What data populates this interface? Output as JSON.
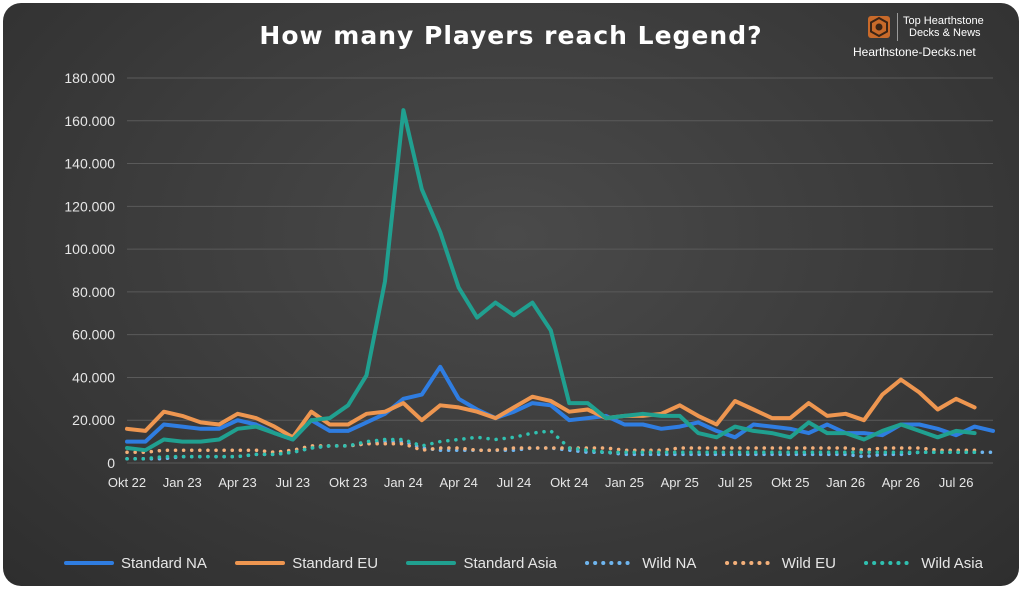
{
  "brand": {
    "line1": "Top Hearthstone",
    "line2": "Decks & News",
    "url": "Hearthstone-Decks.net"
  },
  "chart_data": {
    "type": "line",
    "title": "How many Players reach Legend?",
    "xlabel": "",
    "ylabel": "",
    "ylim": [
      0,
      180000
    ],
    "y_ticks": [
      "0",
      "20.000",
      "40.000",
      "60.000",
      "80.000",
      "100.000",
      "120.000",
      "140.000",
      "160.000",
      "180.000"
    ],
    "y_tick_values": [
      0,
      20000,
      40000,
      60000,
      80000,
      100000,
      120000,
      140000,
      160000,
      180000
    ],
    "x_tick_labels": [
      {
        "index": 0,
        "label": "Okt 22"
      },
      {
        "index": 3,
        "label": "Jan 23"
      },
      {
        "index": 6,
        "label": "Apr 23"
      },
      {
        "index": 9,
        "label": "Jul 23"
      },
      {
        "index": 12,
        "label": "Okt 23"
      },
      {
        "index": 15,
        "label": "Jan 24"
      },
      {
        "index": 18,
        "label": "Apr 24"
      },
      {
        "index": 21,
        "label": "Jul 24"
      },
      {
        "index": 24,
        "label": "Okt 24"
      },
      {
        "index": 27,
        "label": "Jan 25"
      },
      {
        "index": 30,
        "label": "Apr 25"
      },
      {
        "index": 33,
        "label": "Jul 25"
      },
      {
        "index": 36,
        "label": "Okt 25"
      },
      {
        "index": 39,
        "label": "Jan 26"
      },
      {
        "index": 42,
        "label": "Apr 26"
      },
      {
        "index": 45,
        "label": "Jul 26"
      }
    ],
    "grid": true,
    "legend_position": "bottom",
    "series": [
      {
        "name": "Standard NA",
        "color": "#2f7de1",
        "style": "solid",
        "values": [
          10000,
          10000,
          18000,
          17000,
          16000,
          16000,
          20000,
          18000,
          14000,
          11000,
          20000,
          15000,
          15000,
          19000,
          23000,
          30000,
          32000,
          45000,
          30000,
          25000,
          21000,
          24000,
          28000,
          27000,
          20000,
          21000,
          22000,
          18000,
          18000,
          16000,
          17000,
          19000,
          15000,
          12000,
          18000,
          17000,
          16000,
          14000,
          18000,
          14000,
          14000,
          13000,
          18000,
          18000,
          16000,
          13000,
          17000,
          15000
        ]
      },
      {
        "name": "Standard EU",
        "color": "#ee9650",
        "style": "solid",
        "values": [
          16000,
          15000,
          24000,
          22000,
          19000,
          18000,
          23000,
          21000,
          17000,
          12000,
          24000,
          18000,
          18000,
          23000,
          24000,
          28000,
          20000,
          27000,
          26000,
          24000,
          21000,
          26000,
          31000,
          29000,
          24000,
          25000,
          21000,
          22000,
          22000,
          23000,
          27000,
          22000,
          18000,
          29000,
          25000,
          21000,
          21000,
          28000,
          22000,
          23000,
          20000,
          32000,
          39000,
          33000,
          25000,
          30000,
          26000
        ]
      },
      {
        "name": "Standard Asia",
        "color": "#20a090",
        "style": "solid",
        "values": [
          7000,
          6000,
          11000,
          10000,
          10000,
          11000,
          16000,
          17000,
          14000,
          11000,
          20000,
          21000,
          27000,
          41000,
          85000,
          165000,
          128000,
          108000,
          82000,
          68000,
          75000,
          69000,
          75000,
          62000,
          28000,
          28000,
          21000,
          22000,
          23000,
          22000,
          22000,
          14000,
          12000,
          17000,
          15000,
          14000,
          12000,
          19000,
          14000,
          14000,
          11000,
          15000,
          18000,
          15000,
          12000,
          15000,
          14000
        ]
      },
      {
        "name": "Wild NA",
        "color": "#6fb5ee",
        "style": "dotted",
        "values": [
          2000,
          2000,
          2000,
          3000,
          3000,
          3000,
          3000,
          4000,
          4000,
          5000,
          7000,
          8000,
          8000,
          9000,
          10000,
          10000,
          7000,
          6000,
          6000,
          6000,
          6000,
          6000,
          7000,
          7000,
          6000,
          5000,
          5000,
          4000,
          4000,
          4000,
          4000,
          4000,
          4000,
          4000,
          4000,
          4000,
          4000,
          4000,
          4000,
          4000,
          3000,
          4000,
          4000,
          5000,
          5000,
          5000,
          5000,
          5000
        ]
      },
      {
        "name": "Wild EU",
        "color": "#f4b07a",
        "style": "dotted",
        "values": [
          5000,
          5000,
          6000,
          6000,
          6000,
          6000,
          6000,
          6000,
          5000,
          6000,
          8000,
          8000,
          8000,
          9000,
          9000,
          9000,
          6000,
          7000,
          7000,
          6000,
          6000,
          7000,
          7000,
          7000,
          7000,
          7000,
          7000,
          6000,
          6000,
          6000,
          7000,
          7000,
          7000,
          7000,
          7000,
          7000,
          7000,
          7000,
          7000,
          7000,
          6000,
          7000,
          7000,
          7000,
          6000,
          6000,
          6000
        ]
      },
      {
        "name": "Wild Asia",
        "color": "#30c0b0",
        "style": "dotted",
        "values": [
          2000,
          2000,
          3000,
          3000,
          3000,
          3000,
          3000,
          4000,
          4000,
          5000,
          7000,
          8000,
          8000,
          10000,
          11000,
          11000,
          8000,
          10000,
          11000,
          12000,
          11000,
          12000,
          14000,
          15000,
          7000,
          6000,
          5000,
          5000,
          5000,
          5000,
          5000,
          5000,
          5000,
          5000,
          5000,
          5000,
          5000,
          5000,
          5000,
          5000,
          5000,
          5000,
          5000,
          5000,
          5000,
          5000,
          5000
        ]
      }
    ]
  }
}
